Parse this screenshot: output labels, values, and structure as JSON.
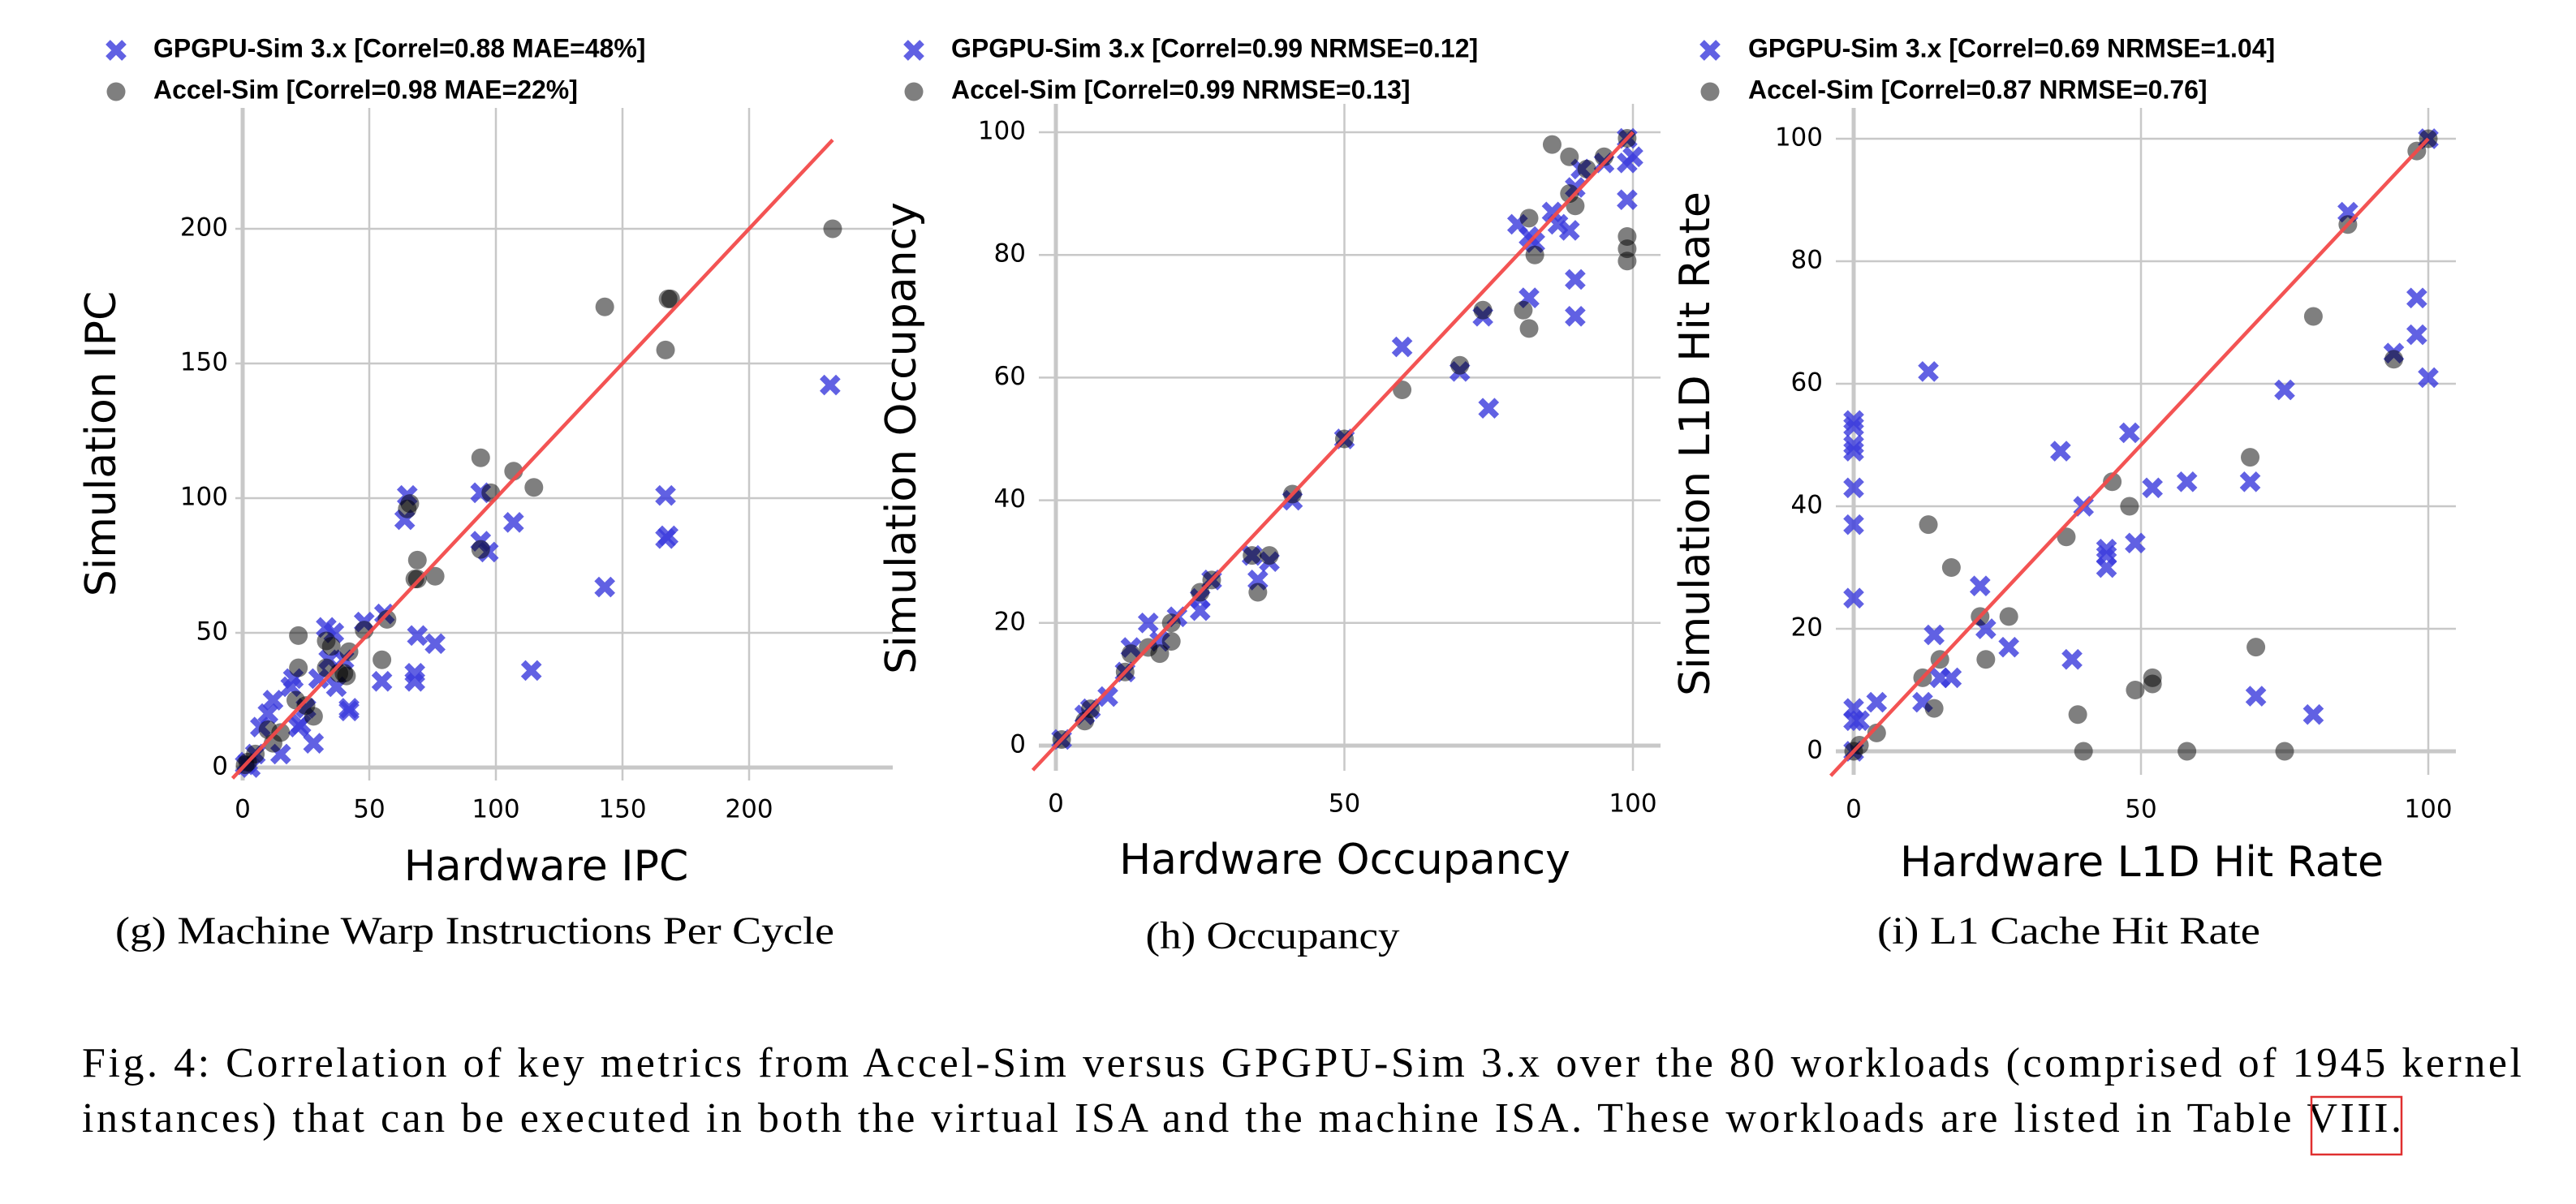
{
  "chart_data": [
    {
      "type": "scatter",
      "xlabel": "Hardware IPC",
      "ylabel": "Simulation IPC",
      "xlim": [
        -3,
        255
      ],
      "ylim": [
        -4,
        240
      ],
      "xticks": [
        "0",
        "50",
        "100",
        "150",
        "200"
      ],
      "yticks": [
        "0",
        "50",
        "100",
        "150",
        "200"
      ],
      "grid": true,
      "legend_position": "top-left",
      "caption": "(g) Machine Warp Instructions Per Cycle",
      "reference_line": {
        "from": -4,
        "to": 233,
        "color": "#f24a4a"
      },
      "series": [
        {
          "name": "GPGPU-Sim 3.x [Correl=0.88 MAE=48%]",
          "marker": "x",
          "color": "#7b7be6",
          "points": [
            [
              232,
              142
            ],
            [
              167,
              101
            ],
            [
              168,
              86
            ],
            [
              167,
              85
            ],
            [
              143,
              67
            ],
            [
              114,
              36
            ],
            [
              107,
              91
            ],
            [
              94,
              102
            ],
            [
              94,
              84
            ],
            [
              97,
              80
            ],
            [
              65,
              101
            ],
            [
              64,
              92
            ],
            [
              69,
              49
            ],
            [
              76,
              46
            ],
            [
              68,
              35
            ],
            [
              68,
              32
            ],
            [
              56,
              57
            ],
            [
              55,
              32
            ],
            [
              48,
              54
            ],
            [
              42,
              22
            ],
            [
              33,
              52
            ],
            [
              36,
              50
            ],
            [
              34,
              40
            ],
            [
              37,
              30
            ],
            [
              30,
              33
            ],
            [
              28,
              9
            ],
            [
              20,
              33
            ],
            [
              19,
              30
            ],
            [
              12,
              25
            ],
            [
              10,
              20
            ],
            [
              7,
              15
            ],
            [
              15,
              5
            ],
            [
              22,
              15
            ],
            [
              5,
              5
            ],
            [
              2,
              2
            ],
            [
              3,
              0
            ],
            [
              1,
              1
            ],
            [
              40,
              40
            ],
            [
              25,
              22
            ],
            [
              42,
              21
            ],
            [
              23,
              16
            ]
          ]
        },
        {
          "name": "Accel-Sim [Correl=0.98 MAE=22%]",
          "marker": "circle",
          "color": "#7f7f7f",
          "points": [
            [
              233,
              200
            ],
            [
              143,
              171
            ],
            [
              168,
              174
            ],
            [
              169,
              174
            ],
            [
              167,
              155
            ],
            [
              94,
              115
            ],
            [
              107,
              110
            ],
            [
              115,
              104
            ],
            [
              98,
              102
            ],
            [
              94,
              81
            ],
            [
              66,
              98
            ],
            [
              65,
              96
            ],
            [
              69,
              77
            ],
            [
              68,
              70
            ],
            [
              69,
              70
            ],
            [
              76,
              71
            ],
            [
              57,
              55
            ],
            [
              55,
              40
            ],
            [
              48,
              51
            ],
            [
              42,
              43
            ],
            [
              40,
              35
            ],
            [
              41,
              34
            ],
            [
              33,
              47
            ],
            [
              33,
              37
            ],
            [
              22,
              49
            ],
            [
              22,
              37
            ],
            [
              25,
              23
            ],
            [
              21,
              25
            ],
            [
              28,
              19
            ],
            [
              15,
              13
            ],
            [
              12,
              9
            ],
            [
              10,
              14
            ],
            [
              5,
              5
            ],
            [
              2,
              2
            ],
            [
              1,
              1
            ],
            [
              38,
              35
            ],
            [
              35,
              45
            ]
          ]
        }
      ]
    },
    {
      "type": "scatter",
      "xlabel": "Hardware Occupancy",
      "ylabel": "Simulation Occupancy",
      "xlim": [
        -3,
        104
      ],
      "ylim": [
        -6,
        105
      ],
      "xticks": [
        "0",
        "50",
        "100"
      ],
      "yticks": [
        "0",
        "20",
        "40",
        "60",
        "80",
        "100"
      ],
      "grid": true,
      "legend_position": "top-left",
      "caption": "(h) Occupancy",
      "reference_line": {
        "from": -4,
        "to": 100,
        "color": "#f24a4a"
      },
      "series": [
        {
          "name": "GPGPU-Sim 3.x [Correl=0.99 NRMSE=0.12]",
          "marker": "x",
          "color": "#7b7be6",
          "points": [
            [
              99,
              99
            ],
            [
              100,
              96
            ],
            [
              99,
              95
            ],
            [
              99,
              89
            ],
            [
              90,
              76
            ],
            [
              90,
              70
            ],
            [
              82,
              73
            ],
            [
              75,
              55
            ],
            [
              60,
              65
            ],
            [
              70,
              61
            ],
            [
              74,
              70
            ],
            [
              80,
              85
            ],
            [
              82,
              83
            ],
            [
              83,
              82
            ],
            [
              86,
              87
            ],
            [
              87,
              85
            ],
            [
              89,
              84
            ],
            [
              90,
              91
            ],
            [
              91,
              94
            ],
            [
              95,
              95
            ],
            [
              41,
              40
            ],
            [
              34,
              31
            ],
            [
              35,
              27
            ],
            [
              37,
              30
            ],
            [
              27,
              27
            ],
            [
              25,
              24
            ],
            [
              25,
              22
            ],
            [
              21,
              21
            ],
            [
              16,
              20
            ],
            [
              13,
              16
            ],
            [
              18,
              17
            ],
            [
              12,
              12
            ],
            [
              9,
              8
            ],
            [
              6,
              6
            ],
            [
              5,
              5
            ],
            [
              1,
              1
            ],
            [
              50,
              50
            ]
          ]
        },
        {
          "name": "Accel-Sim [Correl=0.99 NRMSE=0.13]",
          "marker": "circle",
          "color": "#7f7f7f",
          "points": [
            [
              99,
              99
            ],
            [
              86,
              98
            ],
            [
              89,
              96
            ],
            [
              92,
              94
            ],
            [
              95,
              96
            ],
            [
              89,
              90
            ],
            [
              90,
              88
            ],
            [
              83,
              80
            ],
            [
              81,
              71
            ],
            [
              82,
              68
            ],
            [
              99,
              83
            ],
            [
              99,
              81
            ],
            [
              99,
              79
            ],
            [
              74,
              71
            ],
            [
              70,
              62
            ],
            [
              60,
              58
            ],
            [
              41,
              41
            ],
            [
              34,
              31
            ],
            [
              35,
              25
            ],
            [
              37,
              31
            ],
            [
              27,
              27
            ],
            [
              25,
              25
            ],
            [
              20,
              20
            ],
            [
              20,
              17
            ],
            [
              18,
              15
            ],
            [
              16,
              16
            ],
            [
              13,
              15
            ],
            [
              12,
              12
            ],
            [
              5,
              4
            ],
            [
              6,
              6
            ],
            [
              1,
              1
            ],
            [
              50,
              50
            ],
            [
              82,
              86
            ]
          ]
        }
      ]
    },
    {
      "type": "scatter",
      "xlabel": "Hardware L1D Hit Rate",
      "ylabel": "Simulation L1D Hit Rate",
      "xlim": [
        -3,
        105
      ],
      "ylim": [
        -4,
        106
      ],
      "xticks": [
        "0",
        "50",
        "100"
      ],
      "yticks": [
        "0",
        "20",
        "40",
        "60",
        "80",
        "100"
      ],
      "grid": true,
      "legend_position": "top-left",
      "caption": "(i) L1 Cache Hit Rate",
      "reference_line": {
        "from": -4,
        "to": 100,
        "color": "#f24a4a"
      },
      "series": [
        {
          "name": "GPGPU-Sim 3.x [Correl=0.69 NRMSE=1.04]",
          "marker": "x",
          "color": "#7b7be6",
          "points": [
            [
              0,
              54
            ],
            [
              0,
              53
            ],
            [
              0,
              50
            ],
            [
              0,
              49
            ],
            [
              0,
              43
            ],
            [
              0,
              37
            ],
            [
              0,
              25
            ],
            [
              0,
              7
            ],
            [
              0,
              5
            ],
            [
              1,
              5
            ],
            [
              0,
              0
            ],
            [
              4,
              8
            ],
            [
              13,
              62
            ],
            [
              12,
              8
            ],
            [
              14,
              19
            ],
            [
              15,
              12
            ],
            [
              17,
              12
            ],
            [
              22,
              27
            ],
            [
              23,
              20
            ],
            [
              27,
              17
            ],
            [
              36,
              49
            ],
            [
              38,
              15
            ],
            [
              40,
              40
            ],
            [
              44,
              33
            ],
            [
              44,
              32
            ],
            [
              44,
              30
            ],
            [
              48,
              52
            ],
            [
              49,
              34
            ],
            [
              52,
              43
            ],
            [
              58,
              44
            ],
            [
              69,
              44
            ],
            [
              70,
              9
            ],
            [
              75,
              59
            ],
            [
              80,
              6
            ],
            [
              86,
              88
            ],
            [
              94,
              65
            ],
            [
              98,
              74
            ],
            [
              98,
              68
            ],
            [
              100,
              61
            ],
            [
              100,
              100
            ]
          ]
        },
        {
          "name": "Accel-Sim [Correl=0.87 NRMSE=0.76]",
          "marker": "circle",
          "color": "#7f7f7f",
          "points": [
            [
              0,
              0
            ],
            [
              1,
              1
            ],
            [
              4,
              3
            ],
            [
              12,
              12
            ],
            [
              13,
              37
            ],
            [
              14,
              7
            ],
            [
              15,
              15
            ],
            [
              17,
              30
            ],
            [
              22,
              22
            ],
            [
              23,
              15
            ],
            [
              27,
              22
            ],
            [
              37,
              35
            ],
            [
              39,
              6
            ],
            [
              40,
              0
            ],
            [
              45,
              44
            ],
            [
              48,
              40
            ],
            [
              49,
              10
            ],
            [
              52,
              12
            ],
            [
              52,
              11
            ],
            [
              58,
              0
            ],
            [
              69,
              48
            ],
            [
              70,
              17
            ],
            [
              75,
              0
            ],
            [
              80,
              71
            ],
            [
              86,
              86
            ],
            [
              94,
              64
            ],
            [
              98,
              98
            ],
            [
              100,
              100
            ]
          ]
        }
      ]
    }
  ],
  "figure": {
    "caption_line1": "Fig. 4: Correlation of key metrics from Accel-Sim versus GPGPU-Sim 3.x over the 80 workloads (comprised of 1945 kernel",
    "caption_line2": "instances) that can be executed in both the virtual ISA and the machine ISA. These workloads are listed in Table ",
    "caption_ref": "VIII",
    "caption_end": ".",
    "ref_box_color": "#e03030"
  }
}
